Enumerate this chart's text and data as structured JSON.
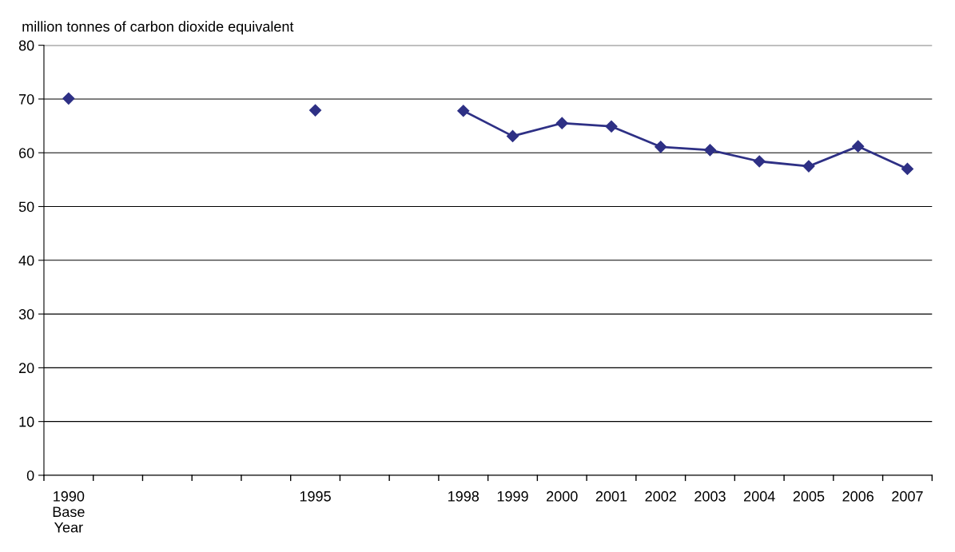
{
  "chart_data": {
    "type": "line",
    "ylabel": "million tonnes of carbon dioxide equivalent",
    "categories": [
      "1990\nBase\nYear",
      null,
      null,
      null,
      null,
      "1995",
      null,
      null,
      "1998",
      "1999",
      "2000",
      "2001",
      "2002",
      "2003",
      "2004",
      "2005",
      "2006",
      "2007"
    ],
    "series": [
      {
        "color": "#2e3085",
        "values": [
          70.1,
          null,
          null,
          null,
          null,
          67.9,
          null,
          null,
          67.8,
          63.1,
          65.5,
          64.9,
          61.1,
          60.5,
          58.4,
          57.5,
          61.2,
          57.0
        ]
      }
    ],
    "ylim": [
      0,
      80
    ],
    "yticks": [
      0,
      10,
      20,
      30,
      40,
      50,
      60,
      70,
      80
    ],
    "grid": "y",
    "marker": "diamond",
    "line_style": "solid",
    "legend": false
  }
}
